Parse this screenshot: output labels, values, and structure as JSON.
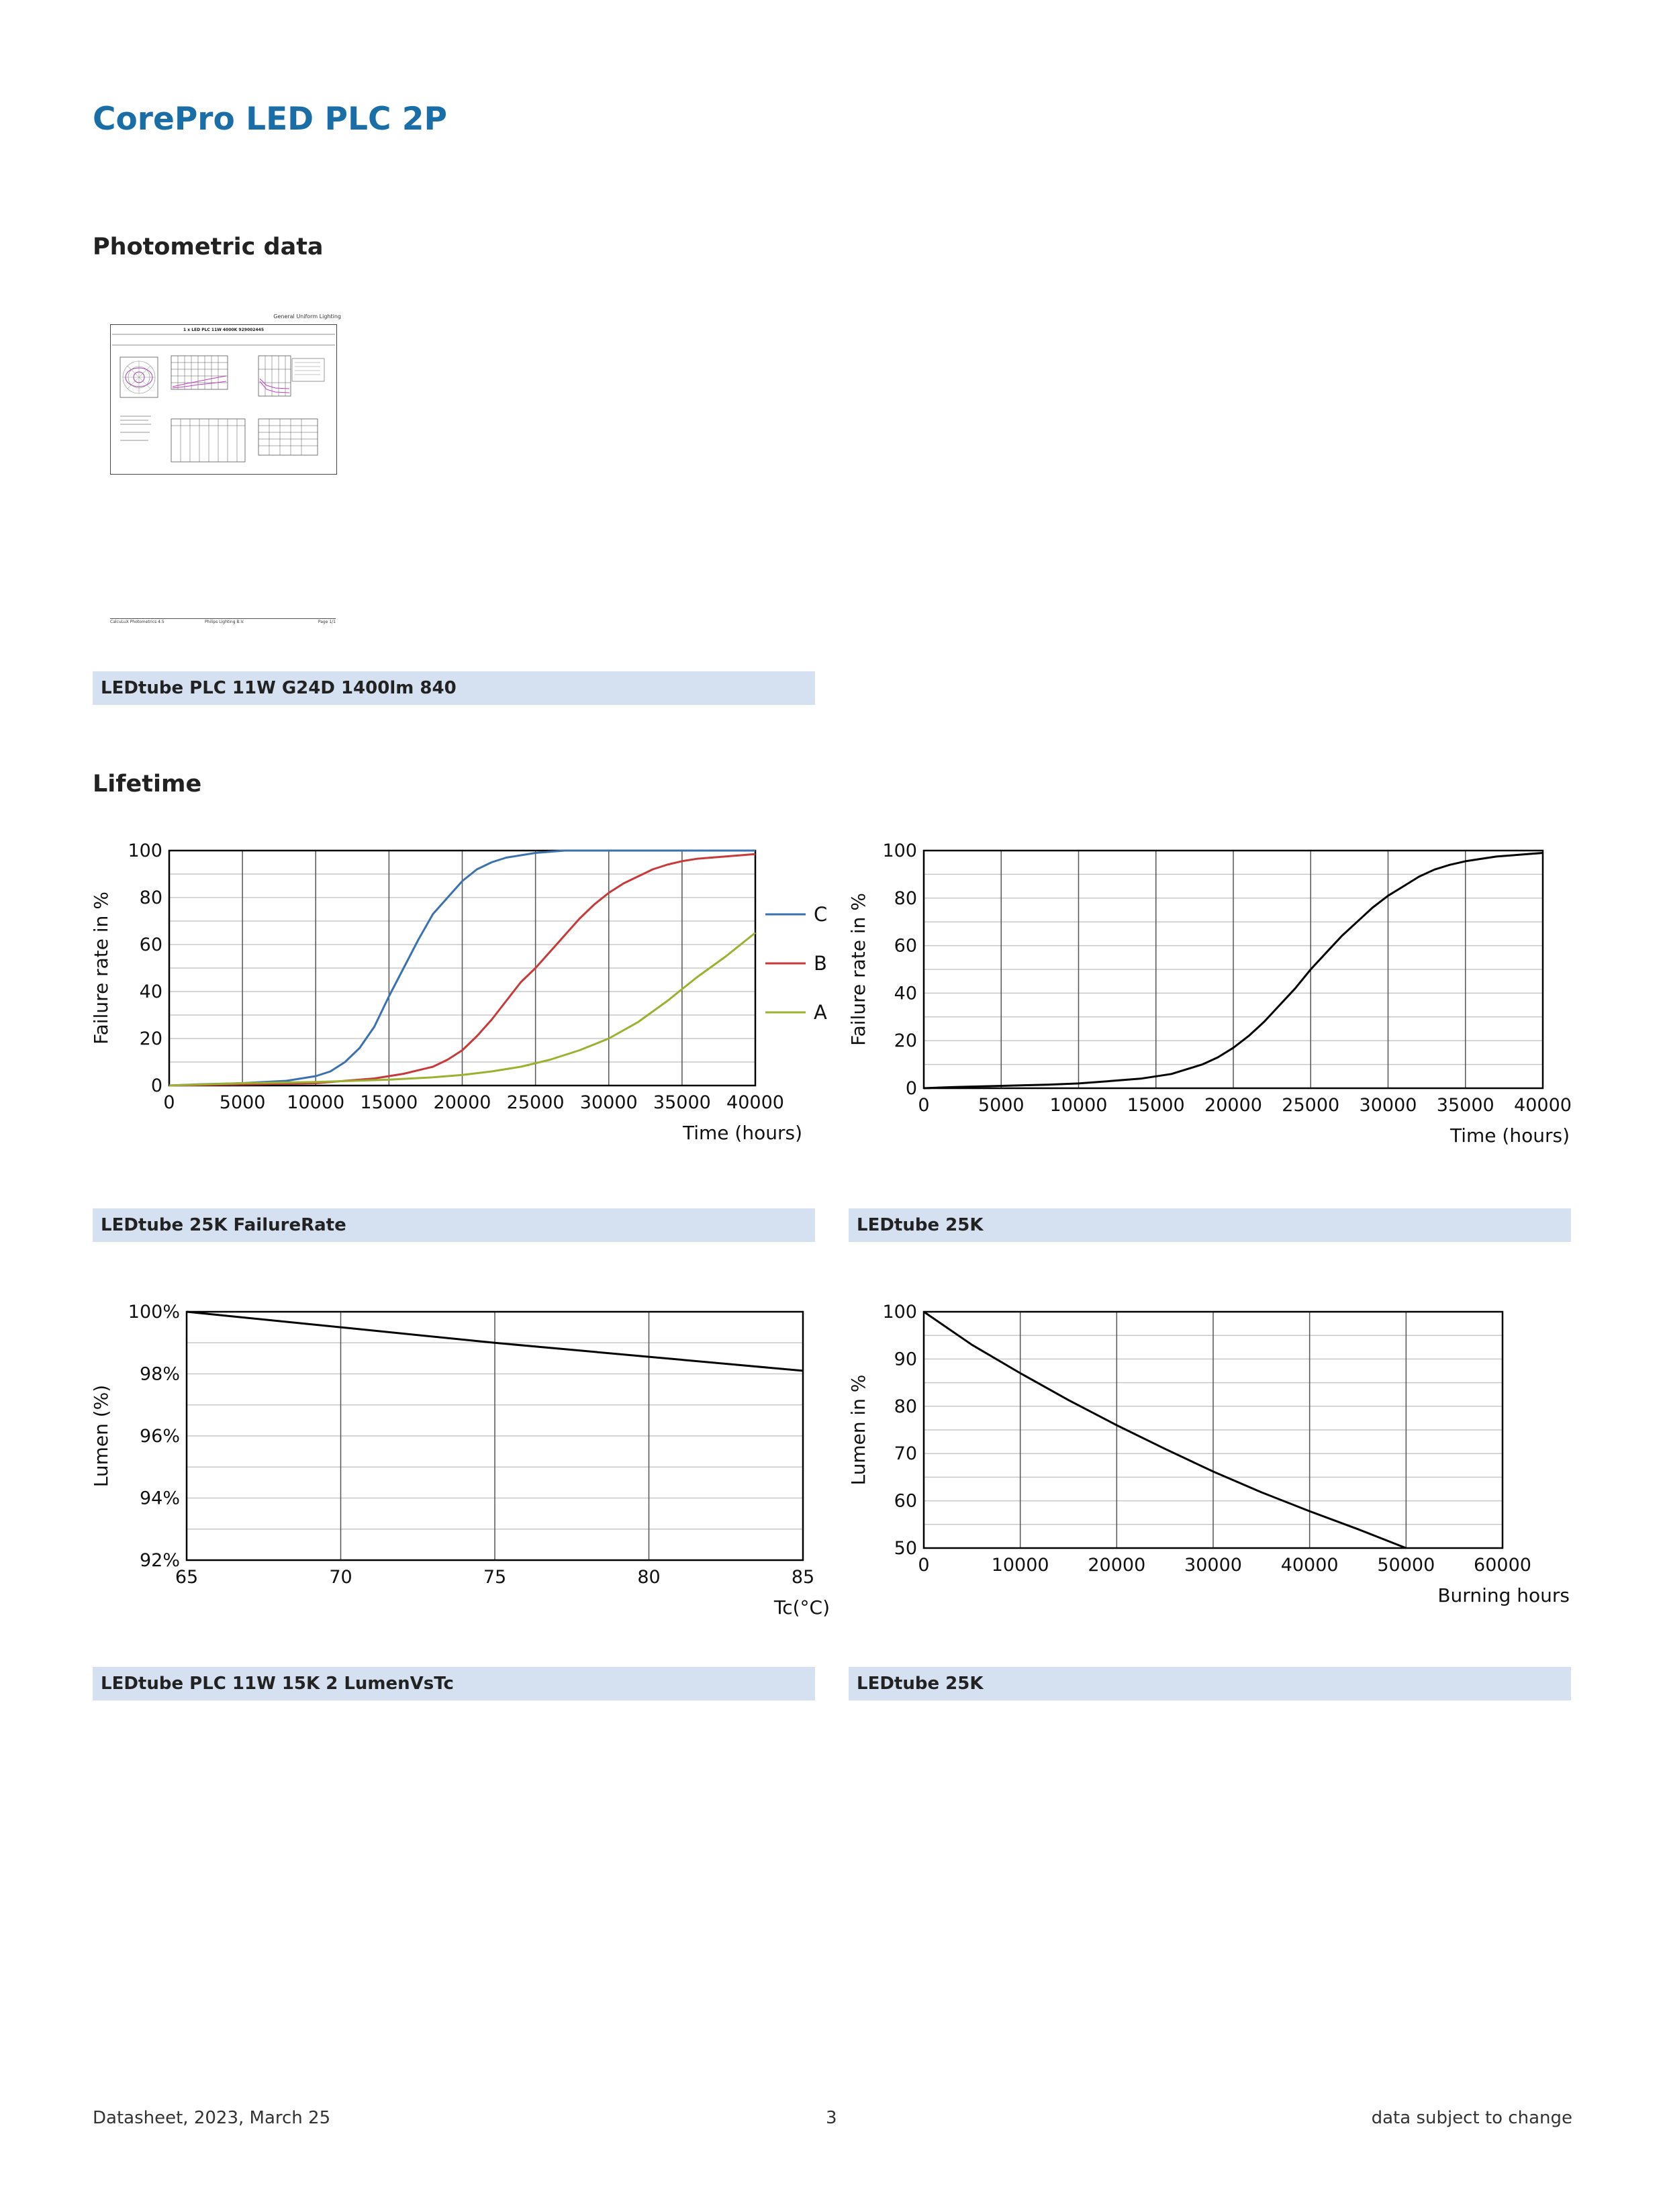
{
  "document": {
    "title": "CorePro LED PLC 2P",
    "sections": {
      "photometric": "Photometric data",
      "lifetime": "Lifetime"
    }
  },
  "photometric_thumbnail": {
    "header": "General Uniform Lighting",
    "subtitle": "1 x LED PLC 11W 4000K 929002445",
    "footer_left": "CalcuLuX Photometrics 4.5",
    "footer_center": "Philips Lighting B.V.",
    "footer_right": "Page 1/1"
  },
  "captions": {
    "photometric": "LEDtube PLC 11W G24D 1400lm 840",
    "failure_rate_abc": "LEDtube 25K FailureRate",
    "failure_rate": "LEDtube 25K",
    "lumen_vs_tc": "LEDtube PLC 11W 15K 2 LumenVsTc",
    "lumen_vs_hours": "LEDtube 25K"
  },
  "chart_data": [
    {
      "id": "failure_abc",
      "type": "line",
      "xlabel": "Time (hours)",
      "ylabel": "Failure rate in %",
      "xlim": [
        0,
        40000
      ],
      "ylim": [
        0,
        100
      ],
      "xticks": [
        0,
        5000,
        10000,
        15000,
        20000,
        25000,
        30000,
        35000,
        40000
      ],
      "yticks": [
        0,
        20,
        40,
        60,
        80,
        100
      ],
      "grid": true,
      "legend": "right",
      "series": [
        {
          "name": "C",
          "color": "#3a72b0",
          "x": [
            0,
            2000,
            5000,
            8000,
            10000,
            11000,
            12000,
            13000,
            14000,
            15000,
            16000,
            17000,
            18000,
            19000,
            20000,
            21000,
            22000,
            23000,
            24000,
            25000,
            26000,
            27000,
            30000,
            40000
          ],
          "y": [
            0,
            0.5,
            1,
            2,
            4,
            6,
            10,
            16,
            25,
            38,
            50,
            62,
            73,
            80,
            87,
            92,
            95,
            97,
            98,
            99,
            99.5,
            100,
            100,
            100
          ]
        },
        {
          "name": "B",
          "color": "#c83a3a",
          "x": [
            0,
            5000,
            10000,
            12000,
            14000,
            16000,
            18000,
            19000,
            20000,
            21000,
            22000,
            23000,
            24000,
            25000,
            26000,
            27000,
            28000,
            29000,
            30000,
            31000,
            32000,
            33000,
            34000,
            35000,
            36000,
            37000,
            38000,
            39000,
            40000
          ],
          "y": [
            0,
            0.5,
            1,
            2,
            3,
            5,
            8,
            11,
            15,
            21,
            28,
            36,
            44,
            50,
            57,
            64,
            71,
            77,
            82,
            86,
            89,
            92,
            94,
            95.5,
            96.5,
            97,
            97.5,
            98,
            98.5
          ]
        },
        {
          "name": "A",
          "color": "#9ab230",
          "x": [
            0,
            5000,
            10000,
            15000,
            18000,
            20000,
            22000,
            24000,
            26000,
            28000,
            30000,
            32000,
            34000,
            36000,
            38000,
            40000
          ],
          "y": [
            0,
            1,
            1.5,
            2.5,
            3.5,
            4.5,
            6,
            8,
            11,
            15,
            20,
            27,
            36,
            46,
            55,
            65
          ]
        }
      ]
    },
    {
      "id": "failure_25k",
      "type": "line",
      "xlabel": "Time (hours)",
      "ylabel": "Failure rate in %",
      "xlim": [
        0,
        40000
      ],
      "ylim": [
        0,
        100
      ],
      "xticks": [
        0,
        5000,
        10000,
        15000,
        20000,
        25000,
        30000,
        35000,
        40000
      ],
      "yticks": [
        0,
        20,
        40,
        60,
        80,
        100
      ],
      "grid": true,
      "series": [
        {
          "color": "#000000",
          "x": [
            0,
            2000,
            5000,
            8000,
            10000,
            12000,
            14000,
            15000,
            16000,
            17000,
            18000,
            19000,
            20000,
            21000,
            22000,
            23000,
            24000,
            25000,
            26000,
            27000,
            28000,
            29000,
            30000,
            31000,
            32000,
            33000,
            34000,
            35000,
            36000,
            37000,
            38000,
            39000,
            40000
          ],
          "y": [
            0,
            0.5,
            1,
            1.5,
            2,
            3,
            4,
            5,
            6,
            8,
            10,
            13,
            17,
            22,
            28,
            35,
            42,
            50,
            57,
            64,
            70,
            76,
            81,
            85,
            89,
            92,
            94,
            95.5,
            96.5,
            97.5,
            98,
            98.5,
            99
          ]
        }
      ]
    },
    {
      "id": "lumen_vs_tc",
      "type": "line",
      "xlabel": "Tc(°C)",
      "ylabel": "Lumen (%)",
      "xlim": [
        65,
        85
      ],
      "ylim": [
        92,
        100
      ],
      "xticks": [
        65,
        70,
        75,
        80,
        85
      ],
      "yticks": [
        92,
        94,
        96,
        98,
        100
      ],
      "ytick_labels": [
        "92%",
        "94%",
        "96%",
        "98%",
        "100%"
      ],
      "grid": true,
      "series": [
        {
          "color": "#000000",
          "x": [
            65,
            70,
            75,
            80,
            85
          ],
          "y": [
            100,
            99.5,
            99.0,
            98.55,
            98.1
          ]
        }
      ]
    },
    {
      "id": "lumen_vs_hours",
      "type": "line",
      "xlabel": "Burning hours",
      "ylabel": "Lumen in %",
      "xlim": [
        0,
        60000
      ],
      "ylim": [
        50,
        100
      ],
      "xticks": [
        0,
        10000,
        20000,
        30000,
        40000,
        50000,
        60000
      ],
      "yticks": [
        50,
        60,
        70,
        80,
        90,
        100
      ],
      "grid": true,
      "series": [
        {
          "color": "#000000",
          "x": [
            0,
            5000,
            10000,
            15000,
            20000,
            25000,
            30000,
            35000,
            40000,
            45000,
            50000
          ],
          "y": [
            100,
            93,
            87,
            81.3,
            76,
            71,
            66.2,
            61.8,
            57.8,
            54,
            50
          ]
        }
      ]
    }
  ],
  "footer": {
    "left": "Datasheet, 2023, March 25",
    "center": "3",
    "right": "data subject to change"
  }
}
